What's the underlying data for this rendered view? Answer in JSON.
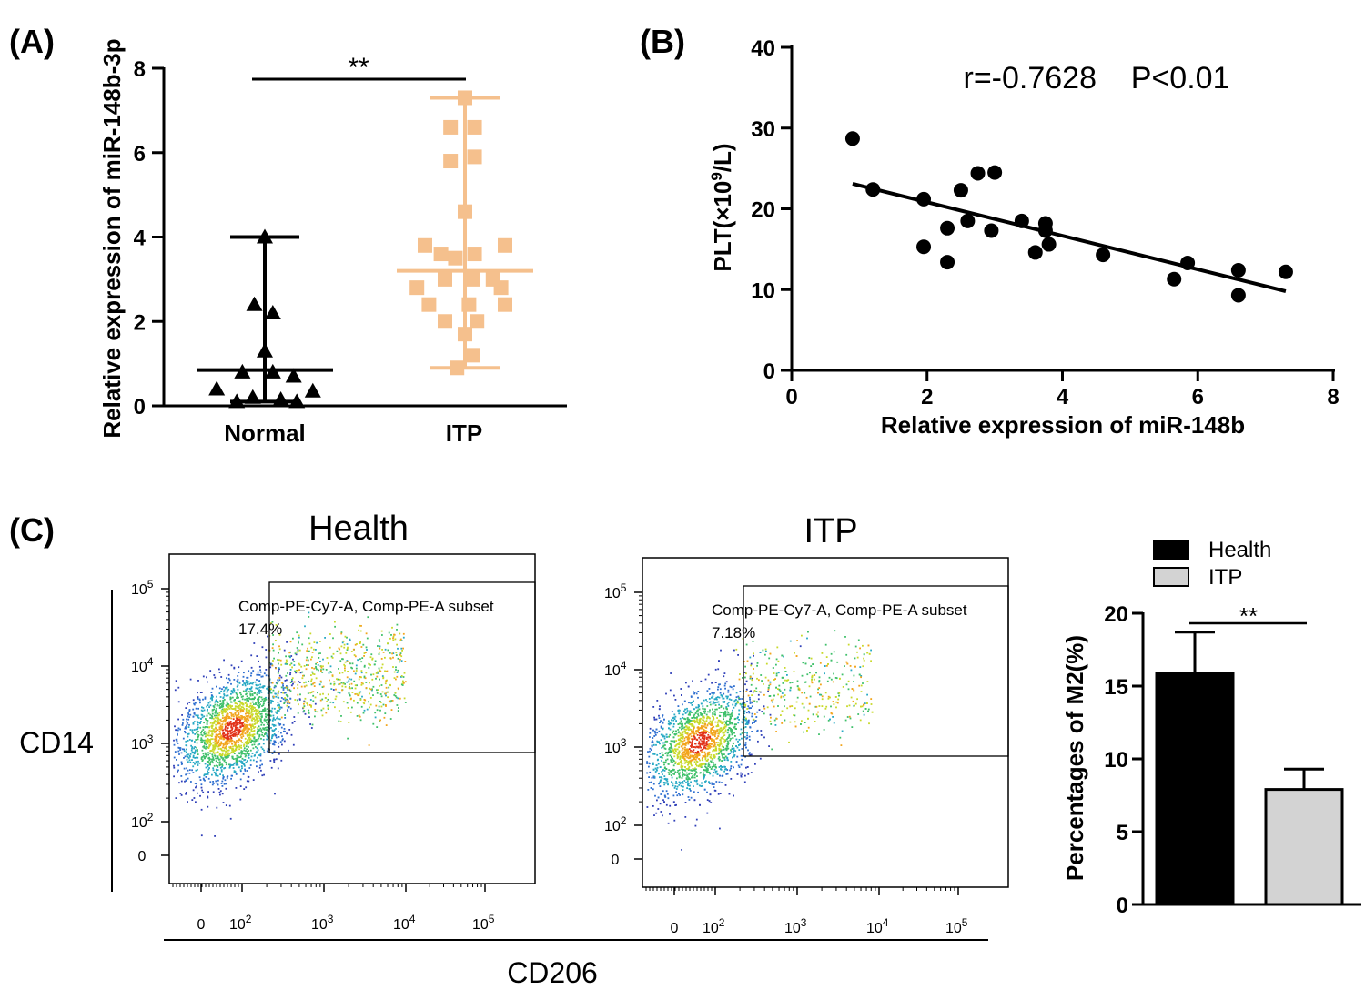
{
  "panels": {
    "a": "(A)",
    "b": "(B)",
    "c": "(C)"
  },
  "chart_data": [
    {
      "id": "A",
      "type": "scatter",
      "title": "",
      "ylabel": "Relative expression of miR-148b-3p",
      "xlabel": "",
      "categories": [
        "Normal",
        "ITP"
      ],
      "ylim": [
        0,
        8
      ],
      "yticks": [
        0,
        2,
        4,
        6,
        8
      ],
      "significance": "**",
      "series": [
        {
          "name": "Normal",
          "marker": "triangle",
          "color": "#000000",
          "values": [
            4.0,
            2.4,
            2.2,
            1.3,
            0.8,
            0.8,
            0.7,
            0.4,
            0.35,
            0.2,
            0.15,
            0.1,
            0.1
          ],
          "offsets": [
            0.0,
            -0.13,
            0.1,
            0.0,
            -0.28,
            0.1,
            0.36,
            -0.6,
            0.6,
            -0.15,
            0.2,
            -0.35,
            0.4
          ],
          "median": 0.85,
          "min": 0.1,
          "max": 4.0
        },
        {
          "name": "ITP",
          "marker": "square",
          "color": "#F5C08D",
          "values": [
            7.3,
            6.6,
            6.6,
            5.9,
            5.8,
            4.6,
            3.8,
            3.8,
            3.6,
            3.6,
            3.5,
            3.0,
            3.0,
            3.0,
            2.8,
            2.8,
            2.4,
            2.4,
            2.4,
            2.0,
            2.0,
            1.7,
            1.2,
            0.9
          ],
          "offsets": [
            0.0,
            -0.18,
            0.12,
            0.12,
            -0.18,
            0.0,
            -0.5,
            0.5,
            -0.3,
            0.12,
            -0.12,
            -0.25,
            0.1,
            0.35,
            -0.6,
            0.45,
            -0.45,
            0.05,
            0.5,
            -0.25,
            0.15,
            0.0,
            0.1,
            -0.1
          ],
          "median": 3.2,
          "min": 0.9,
          "max": 7.3
        }
      ]
    },
    {
      "id": "B",
      "type": "scatter",
      "title": "",
      "annotation": "r=-0.7628    P<0.01",
      "xlabel": "Relative expression of miR-148b",
      "ylabel_base": "PLT(×10",
      "ylabel_sup": "9",
      "ylabel_tail": "/L)",
      "xlim": [
        0,
        8
      ],
      "ylim": [
        0,
        40
      ],
      "xticks": [
        0,
        2,
        4,
        6,
        8
      ],
      "yticks": [
        0,
        10,
        20,
        30,
        40
      ],
      "points": [
        [
          0.9,
          28.7
        ],
        [
          1.2,
          22.4
        ],
        [
          1.95,
          21.2
        ],
        [
          1.95,
          15.3
        ],
        [
          2.3,
          17.6
        ],
        [
          2.3,
          13.4
        ],
        [
          2.5,
          22.3
        ],
        [
          2.6,
          18.5
        ],
        [
          2.75,
          24.4
        ],
        [
          2.95,
          17.3
        ],
        [
          3.0,
          24.5
        ],
        [
          3.4,
          18.5
        ],
        [
          3.6,
          14.6
        ],
        [
          3.75,
          18.2
        ],
        [
          3.75,
          17.3
        ],
        [
          3.8,
          15.6
        ],
        [
          4.6,
          14.3
        ],
        [
          5.65,
          11.3
        ],
        [
          5.85,
          13.3
        ],
        [
          6.6,
          12.4
        ],
        [
          6.6,
          9.3
        ],
        [
          7.3,
          12.2
        ]
      ],
      "fit": {
        "x1": 0.9,
        "y1": 23.1,
        "x2": 7.3,
        "y2": 9.8
      }
    },
    {
      "id": "C-bar",
      "type": "bar",
      "title": "",
      "ylabel": "Percentages of M2(%)",
      "xlabel": "",
      "categories": [
        "Health",
        "ITP"
      ],
      "values": [
        15.9,
        7.9
      ],
      "errors": [
        2.8,
        1.4
      ],
      "colors": [
        "#000000",
        "#d3d3d3"
      ],
      "ylim": [
        0,
        20
      ],
      "yticks": [
        0,
        5,
        10,
        15,
        20
      ],
      "legend": [
        "Health",
        "ITP"
      ],
      "significance": "**"
    }
  ],
  "flow": {
    "ylabel": "CD14",
    "xlabel": "CD206",
    "plots": [
      {
        "title": "Health",
        "gate_line1": "Comp-PE-Cy7-A, Comp-PE-A subset",
        "gate_line2": "17.4%",
        "percent": 17.4
      },
      {
        "title": "ITP",
        "gate_line1": "Comp-PE-Cy7-A, Comp-PE-A subset",
        "gate_line2": "7.18%",
        "percent": 7.18
      }
    ],
    "tick_zero": "0",
    "tick_base": "10",
    "tick_exps": [
      "2",
      "3",
      "4",
      "5"
    ]
  }
}
